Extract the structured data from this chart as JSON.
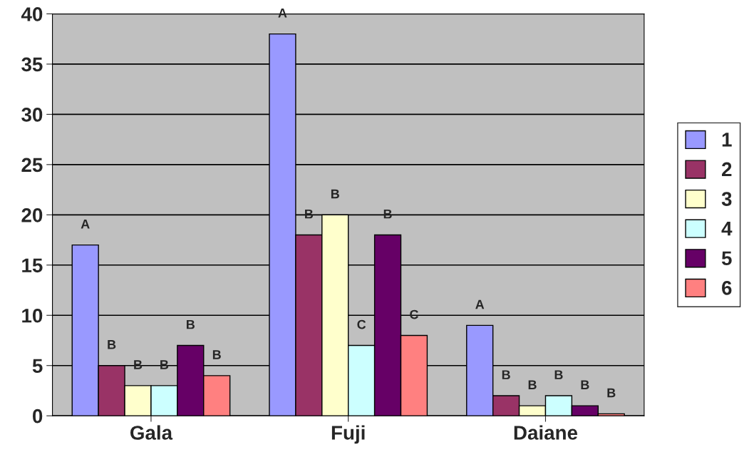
{
  "chart_data": {
    "type": "bar",
    "categories": [
      "Gala",
      "Fuji",
      "Daiane"
    ],
    "series": [
      {
        "name": "1",
        "color": "#9999ff",
        "values": [
          17,
          38,
          9
        ],
        "value_labels": [
          "A",
          "A",
          "A"
        ]
      },
      {
        "name": "2",
        "color": "#993366",
        "values": [
          5,
          18,
          2
        ],
        "value_labels": [
          "B",
          "B",
          "B"
        ]
      },
      {
        "name": "3",
        "color": "#ffffcc",
        "values": [
          3,
          20,
          1
        ],
        "value_labels": [
          "B",
          "B",
          "B"
        ]
      },
      {
        "name": "4",
        "color": "#ccffff",
        "values": [
          3,
          7,
          2
        ],
        "value_labels": [
          "B",
          "C",
          "B"
        ]
      },
      {
        "name": "5",
        "color": "#660066",
        "values": [
          7,
          18,
          1
        ],
        "value_labels": [
          "B",
          "B",
          "B"
        ]
      },
      {
        "name": "6",
        "color": "#ff8080",
        "values": [
          4,
          8,
          0.2
        ],
        "value_labels": [
          "B",
          "C",
          "B"
        ]
      }
    ],
    "ylim": [
      0,
      40
    ],
    "yticks": [
      0,
      5,
      10,
      15,
      20,
      25,
      30,
      35,
      40
    ],
    "grid": "y",
    "legend": "right"
  }
}
